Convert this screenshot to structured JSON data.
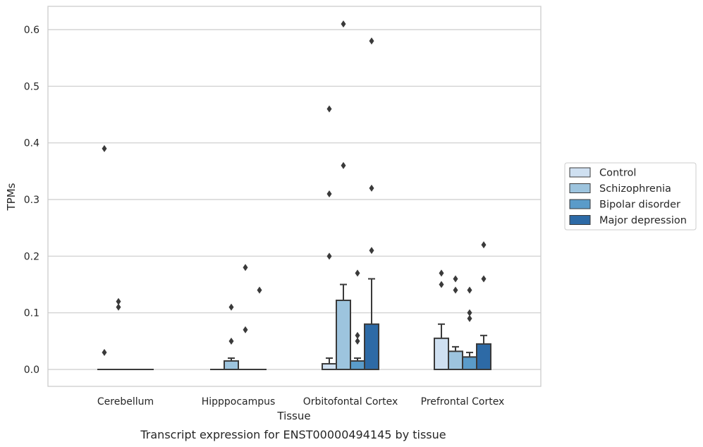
{
  "chart_data": {
    "type": "bar",
    "title": "",
    "caption": "Transcript expression for ENST00000494145 by tissue",
    "xlabel": "Tissue",
    "ylabel": "TPMs",
    "ylim": [
      -0.03,
      0.64
    ],
    "yticks": [
      0.0,
      0.1,
      0.2,
      0.3,
      0.4,
      0.5,
      0.6
    ],
    "ytick_labels": [
      "0.0",
      "0.1",
      "0.2",
      "0.3",
      "0.4",
      "0.5",
      "0.6"
    ],
    "grid": "horizontal",
    "legend_position": "right",
    "categories": [
      "Cerebellum",
      "Hipppocampus",
      "Orbitofontal Cortex",
      "Prefrontal Cortex"
    ],
    "series": [
      {
        "name": "Control",
        "color": "#cfe0f1",
        "values": [
          0.0,
          0.0,
          0.01,
          0.055
        ],
        "err_high": [
          0.0,
          0.0,
          0.02,
          0.08
        ],
        "outliers": [
          [
            0.39,
            0.03
          ],
          [],
          [
            0.46,
            0.31,
            0.2
          ],
          [
            0.17,
            0.15
          ]
        ]
      },
      {
        "name": "Schizophrenia",
        "color": "#9dc4de",
        "values": [
          0.0,
          0.015,
          0.122,
          0.032
        ],
        "err_high": [
          0.0,
          0.02,
          0.15,
          0.04
        ],
        "outliers": [
          [
            0.12,
            0.11
          ],
          [
            0.11,
            0.05
          ],
          [
            0.61,
            0.36
          ],
          [
            0.16,
            0.14
          ]
        ]
      },
      {
        "name": "Bipolar disorder",
        "color": "#5a9bc9",
        "values": [
          0.0,
          0.0,
          0.015,
          0.022
        ],
        "err_high": [
          0.0,
          0.0,
          0.02,
          0.03
        ],
        "outliers": [
          [],
          [
            0.18,
            0.07
          ],
          [
            0.17,
            0.06,
            0.05
          ],
          [
            0.14,
            0.1,
            0.09
          ]
        ]
      },
      {
        "name": "Major depression",
        "color": "#2d6aa6",
        "values": [
          0.0,
          0.0,
          0.08,
          0.045
        ],
        "err_high": [
          0.0,
          0.0,
          0.16,
          0.06
        ],
        "outliers": [
          [],
          [
            0.14
          ],
          [
            0.58,
            0.32,
            0.21
          ],
          [
            0.22,
            0.16
          ]
        ]
      }
    ]
  }
}
